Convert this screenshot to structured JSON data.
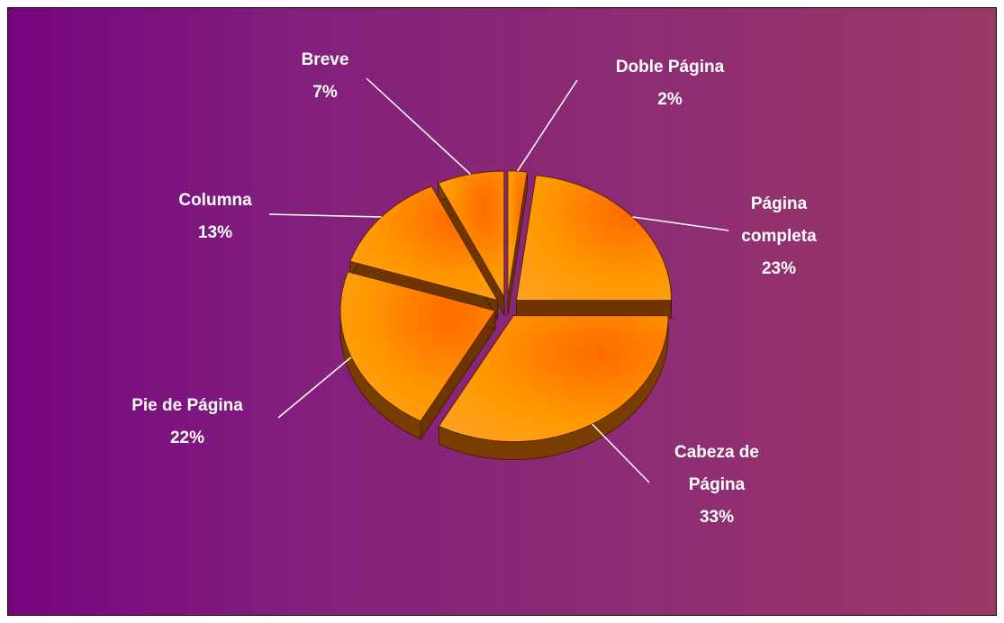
{
  "chart_data": {
    "type": "pie",
    "categories": [
      "Doble Página",
      "Página completa",
      "Cabeza de Página",
      "Pie de Página",
      "Columna",
      "Breve"
    ],
    "values": [
      2,
      23,
      33,
      22,
      13,
      7
    ],
    "value_labels": [
      "2%",
      "23%",
      "33%",
      "22%",
      "13%",
      "7%"
    ],
    "color": "#ff9900"
  }
}
